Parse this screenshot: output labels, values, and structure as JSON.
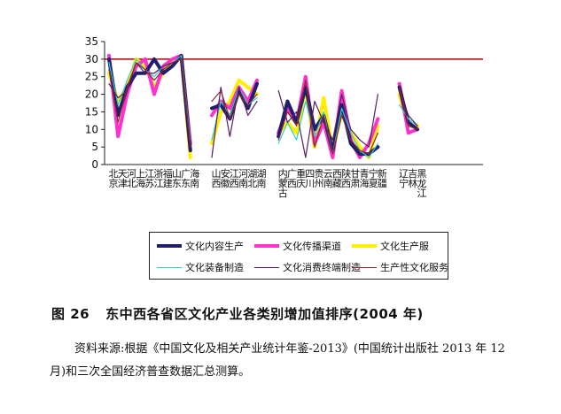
{
  "chart_data": {
    "type": "line",
    "title": "",
    "xlabel": "",
    "ylabel": "",
    "ylim": [
      0,
      35
    ],
    "yticks": [
      0,
      5,
      10,
      15,
      20,
      25,
      30,
      35
    ],
    "reference_line": {
      "y": 30,
      "color": "#b30000"
    },
    "groups": [
      [
        "北京",
        "天津",
        "河北",
        "上海",
        "江苏",
        "浙江",
        "福建",
        "山东",
        "广东",
        "海南"
      ],
      [
        "山西",
        "安徽",
        "江西",
        "河南",
        "湖北",
        "湖南"
      ],
      [
        "内蒙古",
        "广西",
        "重庆",
        "四川",
        "贵州",
        "云南",
        "西藏",
        "陕西",
        "甘肃",
        "青海",
        "宁夏",
        "新疆"
      ],
      [
        "辽宁",
        "吉林",
        "黑龙江"
      ]
    ],
    "series": [
      {
        "name": "文化内容生产",
        "color": "#1f1f6e",
        "width": 4,
        "values": [
          [
            30,
            14,
            22,
            26,
            26,
            30,
            26,
            28,
            31,
            4
          ],
          [
            16,
            17,
            13,
            21,
            16,
            23
          ],
          [
            8,
            18,
            12,
            22,
            10,
            14,
            4,
            17,
            6,
            3,
            3,
            5
          ],
          [
            22,
            12,
            10
          ]
        ]
      },
      {
        "name": "文化传播渠道",
        "color": "#ff33cc",
        "width": 4,
        "values": [
          [
            31,
            8,
            20,
            28,
            30,
            20,
            28,
            30,
            31,
            6
          ],
          [
            14,
            18,
            16,
            22,
            18,
            24
          ],
          [
            9,
            16,
            12,
            25,
            6,
            12,
            2,
            21,
            7,
            2,
            6,
            13
          ],
          [
            23,
            9,
            10
          ]
        ]
      },
      {
        "name": "文化生产服",
        "color": "#ffee00",
        "width": 4,
        "values": [
          [
            26,
            18,
            22,
            30,
            28,
            22,
            26,
            30,
            31,
            2
          ],
          [
            6,
            15,
            18,
            24,
            22,
            20
          ],
          [
            9,
            12,
            9,
            22,
            5,
            19,
            4,
            15,
            9,
            5,
            2,
            11
          ],
          [
            20,
            11,
            11
          ]
        ]
      },
      {
        "name": "文化装备制造",
        "color": "#33cccc",
        "width": 1.2,
        "values": [
          [
            29,
            17,
            24,
            30,
            27,
            25,
            28,
            29,
            31,
            7
          ],
          [
            7,
            18,
            14,
            22,
            17,
            19
          ],
          [
            6,
            12,
            7,
            18,
            8,
            15,
            3,
            16,
            9,
            4,
            2,
            6
          ],
          [
            17,
            13,
            11
          ]
        ]
      },
      {
        "name": "文化消费终端制造",
        "color": "#5a1a66",
        "width": 1.2,
        "values": [
          [
            23,
            19,
            21,
            29,
            26,
            26,
            28,
            29,
            30,
            6
          ],
          [
            2,
            22,
            8,
            22,
            14,
            18
          ],
          [
            21,
            12,
            15,
            2,
            18,
            12,
            7,
            20,
            10,
            7,
            5,
            20
          ],
          [
            21,
            14,
            11
          ]
        ]
      },
      {
        "name": "生产性文化服务",
        "color": "#8b2a2a",
        "width": 1.2,
        "values": [
          [
            27,
            12,
            22,
            29,
            27,
            24,
            27,
            29,
            30,
            5
          ],
          [
            18,
            21,
            13,
            20,
            17,
            20
          ],
          [
            7,
            15,
            11,
            24,
            5,
            14,
            3,
            14,
            7,
            4,
            3,
            9
          ],
          [
            22,
            11,
            10
          ]
        ]
      }
    ]
  },
  "caption": {
    "number": "图 26",
    "title": "东中西各省区文化产业各类别增加值排序(2004 年)"
  },
  "source_text": "资料来源:根据《中国文化及相关产业统计年鉴-2013》(中国统计出版社 2013 年 12 月)和三次全国经济普查数据汇总测算。"
}
